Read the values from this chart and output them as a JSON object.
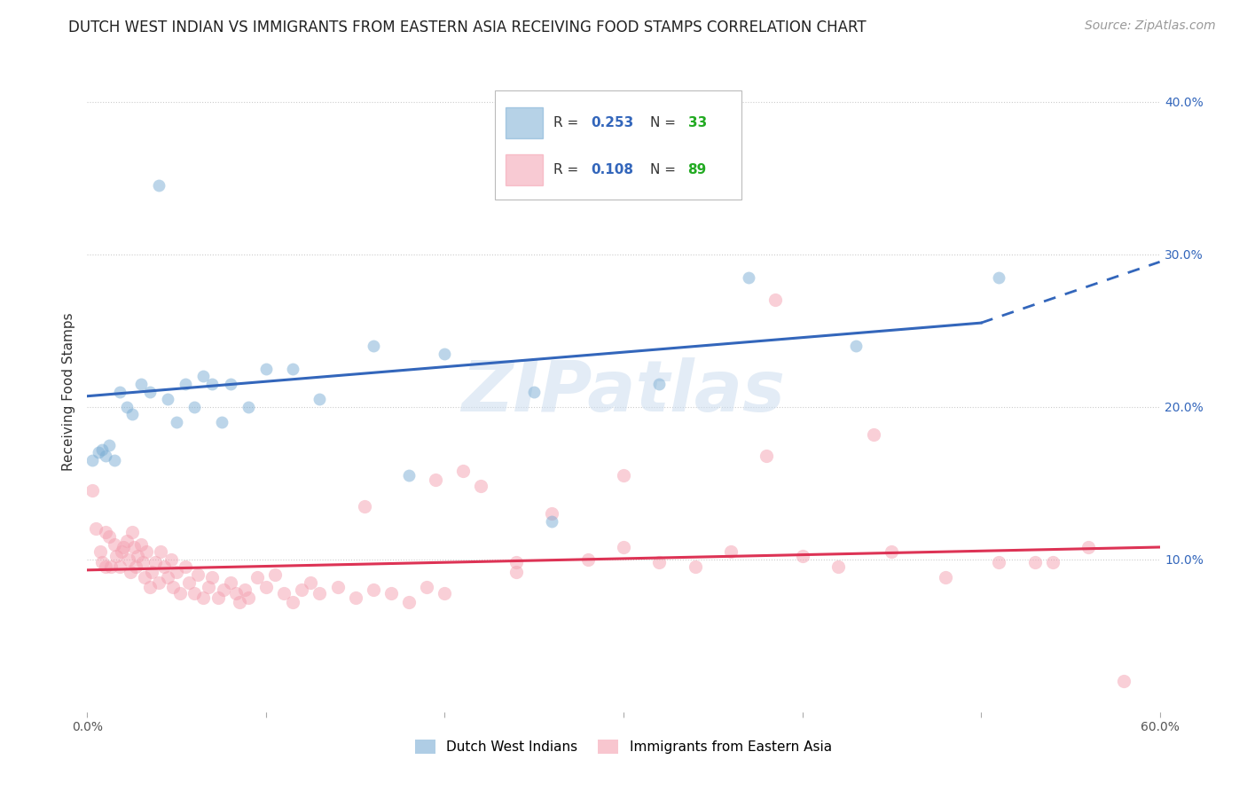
{
  "title": "DUTCH WEST INDIAN VS IMMIGRANTS FROM EASTERN ASIA RECEIVING FOOD STAMPS CORRELATION CHART",
  "source": "Source: ZipAtlas.com",
  "ylabel": "Receiving Food Stamps",
  "xlim": [
    0.0,
    0.6
  ],
  "ylim": [
    0.0,
    0.42
  ],
  "xtick_positions": [
    0.0,
    0.1,
    0.2,
    0.3,
    0.4,
    0.5,
    0.6
  ],
  "xtick_labels": [
    "0.0%",
    "",
    "",
    "",
    "",
    "",
    "60.0%"
  ],
  "ytick_positions": [
    0.1,
    0.2,
    0.3,
    0.4
  ],
  "ytick_labels": [
    "10.0%",
    "20.0%",
    "30.0%",
    "40.0%"
  ],
  "grid_color": "#cccccc",
  "blue_color": "#7aadd4",
  "pink_color": "#f4a0b0",
  "blue_line_color": "#3366bb",
  "pink_line_color": "#dd3355",
  "blue_line_solid": [
    [
      0.0,
      0.207
    ],
    [
      0.5,
      0.255
    ]
  ],
  "blue_line_dashed": [
    [
      0.5,
      0.255
    ],
    [
      0.6,
      0.295
    ]
  ],
  "pink_line": [
    [
      0.0,
      0.093
    ],
    [
      0.6,
      0.108
    ]
  ],
  "watermark": "ZIPatlas",
  "legend_r_blue": "0.253",
  "legend_n_blue": "33",
  "legend_r_pink": "0.108",
  "legend_n_pink": "89",
  "legend_color_r": "#3366bb",
  "legend_color_n": "#22aa22",
  "blue_scatter_x": [
    0.003,
    0.006,
    0.008,
    0.01,
    0.012,
    0.015,
    0.018,
    0.022,
    0.025,
    0.03,
    0.035,
    0.04,
    0.045,
    0.05,
    0.055,
    0.06,
    0.065,
    0.07,
    0.075,
    0.08,
    0.09,
    0.1,
    0.115,
    0.13,
    0.16,
    0.18,
    0.2,
    0.25,
    0.26,
    0.32,
    0.37,
    0.43,
    0.51
  ],
  "blue_scatter_y": [
    0.165,
    0.17,
    0.172,
    0.168,
    0.175,
    0.165,
    0.21,
    0.2,
    0.195,
    0.215,
    0.21,
    0.345,
    0.205,
    0.19,
    0.215,
    0.2,
    0.22,
    0.215,
    0.19,
    0.215,
    0.2,
    0.225,
    0.225,
    0.205,
    0.24,
    0.155,
    0.235,
    0.21,
    0.125,
    0.215,
    0.285,
    0.24,
    0.285
  ],
  "pink_scatter_x": [
    0.003,
    0.005,
    0.007,
    0.008,
    0.01,
    0.01,
    0.012,
    0.013,
    0.015,
    0.016,
    0.018,
    0.019,
    0.02,
    0.022,
    0.023,
    0.024,
    0.025,
    0.026,
    0.027,
    0.028,
    0.03,
    0.031,
    0.032,
    0.033,
    0.035,
    0.036,
    0.038,
    0.04,
    0.041,
    0.043,
    0.045,
    0.047,
    0.048,
    0.05,
    0.052,
    0.055,
    0.057,
    0.06,
    0.062,
    0.065,
    0.068,
    0.07,
    0.073,
    0.076,
    0.08,
    0.083,
    0.085,
    0.088,
    0.09,
    0.095,
    0.1,
    0.105,
    0.11,
    0.115,
    0.12,
    0.125,
    0.13,
    0.14,
    0.15,
    0.16,
    0.17,
    0.18,
    0.19,
    0.2,
    0.21,
    0.22,
    0.24,
    0.26,
    0.28,
    0.3,
    0.32,
    0.34,
    0.36,
    0.38,
    0.4,
    0.42,
    0.45,
    0.48,
    0.51,
    0.54,
    0.56,
    0.58,
    0.385,
    0.3,
    0.44,
    0.53,
    0.155,
    0.195,
    0.24
  ],
  "pink_scatter_y": [
    0.145,
    0.12,
    0.105,
    0.098,
    0.118,
    0.095,
    0.115,
    0.095,
    0.11,
    0.102,
    0.095,
    0.105,
    0.108,
    0.112,
    0.1,
    0.092,
    0.118,
    0.108,
    0.095,
    0.102,
    0.11,
    0.098,
    0.088,
    0.105,
    0.082,
    0.092,
    0.098,
    0.085,
    0.105,
    0.095,
    0.088,
    0.1,
    0.082,
    0.092,
    0.078,
    0.095,
    0.085,
    0.078,
    0.09,
    0.075,
    0.082,
    0.088,
    0.075,
    0.08,
    0.085,
    0.078,
    0.072,
    0.08,
    0.075,
    0.088,
    0.082,
    0.09,
    0.078,
    0.072,
    0.08,
    0.085,
    0.078,
    0.082,
    0.075,
    0.08,
    0.078,
    0.072,
    0.082,
    0.078,
    0.158,
    0.148,
    0.098,
    0.13,
    0.1,
    0.108,
    0.098,
    0.095,
    0.105,
    0.168,
    0.102,
    0.095,
    0.105,
    0.088,
    0.098,
    0.098,
    0.108,
    0.02,
    0.27,
    0.155,
    0.182,
    0.098,
    0.135,
    0.152,
    0.092
  ],
  "blue_marker_size": 100,
  "pink_marker_size": 120,
  "background_color": "#ffffff",
  "title_fontsize": 12,
  "source_fontsize": 10,
  "axis_label_fontsize": 11,
  "tick_fontsize": 10,
  "legend_fontsize": 11
}
